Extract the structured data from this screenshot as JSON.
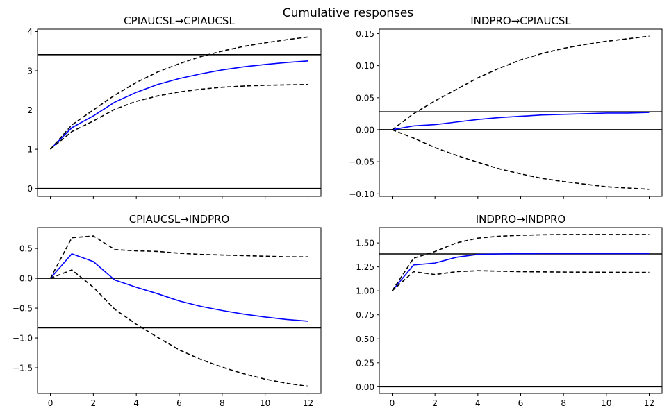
{
  "figure": {
    "suptitle": "Cumulative responses"
  },
  "chart_data": [
    {
      "type": "line",
      "title": "CPIAUCSL→CPIAUCSL",
      "xlabel": "",
      "ylabel": "",
      "x": [
        0,
        1,
        2,
        3,
        4,
        5,
        6,
        7,
        8,
        9,
        10,
        11,
        12
      ],
      "xlim": [
        -0.6,
        12.6
      ],
      "ylim": [
        -0.2,
        4.06
      ],
      "xticks": [
        0,
        2,
        4,
        6,
        8,
        10,
        12
      ],
      "xtick_labels": [
        "",
        "",
        "",
        "",
        "",
        "",
        ""
      ],
      "yticks": [
        0,
        1,
        2,
        3,
        4
      ],
      "ytick_labels": [
        "0",
        "1",
        "2",
        "3",
        "4"
      ],
      "hlines": [
        0,
        3.41
      ],
      "series": [
        {
          "role": "response",
          "color": "#0000ff",
          "style": "solid",
          "values": [
            1.0,
            1.55,
            1.85,
            2.2,
            2.45,
            2.65,
            2.8,
            2.92,
            3.02,
            3.1,
            3.16,
            3.21,
            3.25
          ]
        },
        {
          "role": "upper",
          "color": "#000000",
          "style": "dashed",
          "values": [
            1.0,
            1.62,
            2.0,
            2.38,
            2.7,
            2.97,
            3.18,
            3.36,
            3.5,
            3.62,
            3.71,
            3.79,
            3.86
          ]
        },
        {
          "role": "lower",
          "color": "#000000",
          "style": "dashed",
          "values": [
            1.0,
            1.45,
            1.72,
            2.02,
            2.22,
            2.36,
            2.46,
            2.53,
            2.58,
            2.61,
            2.63,
            2.64,
            2.65
          ]
        }
      ]
    },
    {
      "type": "line",
      "title": "INDPRO→CPIAUCSL",
      "xlabel": "",
      "ylabel": "",
      "x": [
        0,
        1,
        2,
        3,
        4,
        5,
        6,
        7,
        8,
        9,
        10,
        11,
        12
      ],
      "xlim": [
        -0.6,
        12.6
      ],
      "ylim": [
        -0.104,
        0.157
      ],
      "xticks": [
        0,
        2,
        4,
        6,
        8,
        10,
        12
      ],
      "xtick_labels": [
        "",
        "",
        "",
        "",
        "",
        "",
        ""
      ],
      "yticks": [
        -0.1,
        -0.05,
        0.0,
        0.05,
        0.1,
        0.15
      ],
      "ytick_labels": [
        "−0.10",
        "−0.05",
        "0.00",
        "0.05",
        "0.10",
        "0.15"
      ],
      "hlines": [
        0,
        0.028
      ],
      "series": [
        {
          "role": "response",
          "color": "#0000ff",
          "style": "solid",
          "values": [
            0.0,
            0.006,
            0.008,
            0.012,
            0.016,
            0.019,
            0.021,
            0.023,
            0.024,
            0.025,
            0.026,
            0.026,
            0.027
          ]
        },
        {
          "role": "upper",
          "color": "#000000",
          "style": "dashed",
          "values": [
            0.0,
            0.025,
            0.045,
            0.063,
            0.081,
            0.096,
            0.109,
            0.119,
            0.127,
            0.133,
            0.138,
            0.142,
            0.146
          ]
        },
        {
          "role": "lower",
          "color": "#000000",
          "style": "dashed",
          "values": [
            0.0,
            -0.013,
            -0.028,
            -0.04,
            -0.051,
            -0.061,
            -0.069,
            -0.076,
            -0.081,
            -0.085,
            -0.089,
            -0.091,
            -0.093
          ]
        }
      ]
    },
    {
      "type": "line",
      "title": "CPIAUCSL→INDPRO",
      "xlabel": "",
      "ylabel": "",
      "x": [
        0,
        1,
        2,
        3,
        4,
        5,
        6,
        7,
        8,
        9,
        10,
        11,
        12
      ],
      "xlim": [
        -0.6,
        12.6
      ],
      "ylim": [
        -1.93,
        0.85
      ],
      "xticks": [
        0,
        2,
        4,
        6,
        8,
        10,
        12
      ],
      "xtick_labels": [
        "0",
        "2",
        "4",
        "6",
        "8",
        "10",
        "12"
      ],
      "yticks": [
        -1.5,
        -1.0,
        -0.5,
        0.0,
        0.5
      ],
      "ytick_labels": [
        "−1.5",
        "−1.0",
        "−0.5",
        "0.0",
        "0.5"
      ],
      "hlines": [
        0,
        -0.83
      ],
      "series": [
        {
          "role": "response",
          "color": "#0000ff",
          "style": "solid",
          "values": [
            0.0,
            0.41,
            0.28,
            -0.03,
            -0.15,
            -0.26,
            -0.38,
            -0.47,
            -0.54,
            -0.6,
            -0.65,
            -0.69,
            -0.72
          ]
        },
        {
          "role": "upper",
          "color": "#000000",
          "style": "dashed",
          "values": [
            0.0,
            0.68,
            0.71,
            0.48,
            0.46,
            0.45,
            0.42,
            0.4,
            0.39,
            0.38,
            0.37,
            0.36,
            0.36
          ]
        },
        {
          "role": "lower",
          "color": "#000000",
          "style": "dashed",
          "values": [
            0.0,
            0.14,
            -0.15,
            -0.52,
            -0.77,
            -0.99,
            -1.2,
            -1.36,
            -1.49,
            -1.6,
            -1.69,
            -1.76,
            -1.81
          ]
        }
      ]
    },
    {
      "type": "line",
      "title": "INDPRO→INDPRO",
      "xlabel": "",
      "ylabel": "",
      "x": [
        0,
        1,
        2,
        3,
        4,
        5,
        6,
        7,
        8,
        9,
        10,
        11,
        12
      ],
      "xlim": [
        -0.6,
        12.6
      ],
      "ylim": [
        -0.07,
        1.66
      ],
      "xticks": [
        0,
        2,
        4,
        6,
        8,
        10,
        12
      ],
      "xtick_labels": [
        "0",
        "2",
        "4",
        "6",
        "8",
        "10",
        "12"
      ],
      "yticks": [
        0.0,
        0.25,
        0.5,
        0.75,
        1.0,
        1.25,
        1.5
      ],
      "ytick_labels": [
        "0.00",
        "0.25",
        "0.50",
        "0.75",
        "1.00",
        "1.25",
        "1.50"
      ],
      "hlines": [
        0,
        1.385
      ],
      "series": [
        {
          "role": "response",
          "color": "#0000ff",
          "style": "solid",
          "values": [
            1.0,
            1.27,
            1.29,
            1.35,
            1.38,
            1.385,
            1.388,
            1.389,
            1.389,
            1.389,
            1.389,
            1.389,
            1.389
          ]
        },
        {
          "role": "upper",
          "color": "#000000",
          "style": "dashed",
          "values": [
            1.0,
            1.34,
            1.41,
            1.5,
            1.55,
            1.57,
            1.58,
            1.585,
            1.588,
            1.588,
            1.588,
            1.588,
            1.588
          ]
        },
        {
          "role": "lower",
          "color": "#000000",
          "style": "dashed",
          "values": [
            1.0,
            1.2,
            1.17,
            1.2,
            1.21,
            1.205,
            1.2,
            1.198,
            1.196,
            1.195,
            1.194,
            1.193,
            1.193
          ]
        }
      ]
    }
  ]
}
